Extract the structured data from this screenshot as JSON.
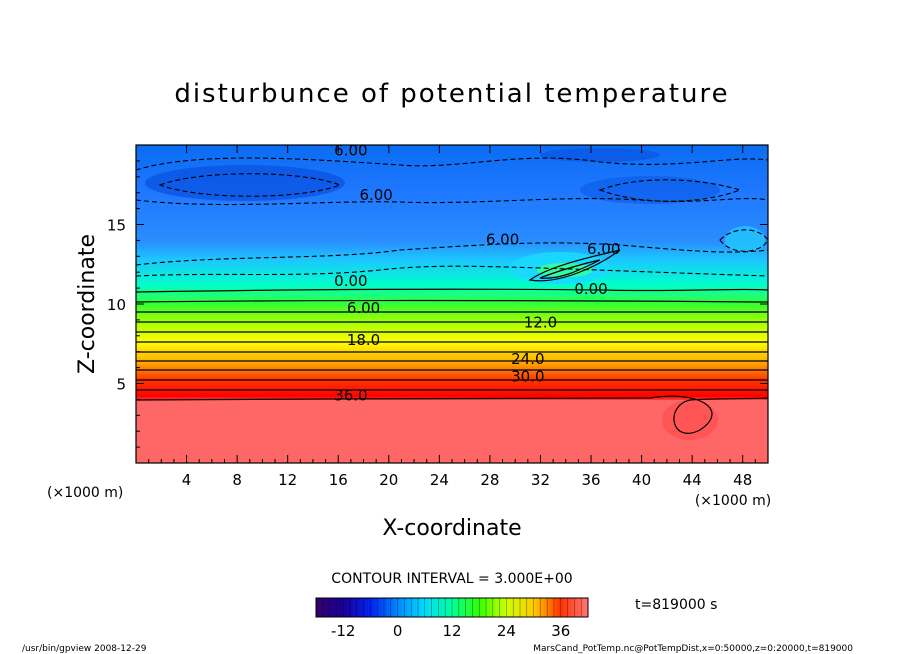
{
  "chart_data": {
    "type": "heatmap",
    "title": "disturbunce of potential temperature",
    "xlabel": "X-coordinate",
    "ylabel": "Z-coordinate",
    "x_unit": "(×1000 m)",
    "y_unit": "(×1000 m)",
    "xlim": [
      0,
      50
    ],
    "ylim": [
      0,
      20
    ],
    "x_ticks": [
      4,
      8,
      12,
      16,
      20,
      24,
      28,
      32,
      36,
      40,
      44,
      48
    ],
    "y_ticks": [
      5,
      10,
      15
    ],
    "contour_interval": "CONTOUR INTERVAL = 3.000E+00",
    "time_label": "t=819000 s",
    "colorbar": {
      "min": -18,
      "max": 42,
      "ticks": [
        -12,
        0,
        12,
        24,
        36
      ],
      "tick_labels": [
        "-12",
        "0",
        "12",
        "24",
        "36"
      ],
      "colors": [
        "#330066",
        "#3300cc",
        "#0033ff",
        "#0099ff",
        "#00ffff",
        "#00ff99",
        "#33ff00",
        "#ccff00",
        "#ffff00",
        "#ffcc00",
        "#ff6600",
        "#ff0000",
        "#ff6666"
      ]
    },
    "contour_labels": [
      {
        "text": "6.00",
        "x": 17,
        "z": 19.4
      },
      {
        "text": "6.00",
        "x": 19,
        "z": 16.6
      },
      {
        "text": "6.00",
        "x": 29,
        "z": 13.8
      },
      {
        "text": "6.00",
        "x": 37,
        "z": 13.2
      },
      {
        "text": "0.00",
        "x": 17,
        "z": 11.2
      },
      {
        "text": "0.00",
        "x": 36,
        "z": 10.7
      },
      {
        "text": "6.00",
        "x": 18,
        "z": 9.5
      },
      {
        "text": "12.0",
        "x": 32,
        "z": 8.6
      },
      {
        "text": "18.0",
        "x": 18,
        "z": 7.5
      },
      {
        "text": "24.0",
        "x": 31,
        "z": 6.3
      },
      {
        "text": "30.0",
        "x": 31,
        "z": 5.2
      },
      {
        "text": "36.0",
        "x": 17,
        "z": 4.0
      }
    ]
  },
  "footer": {
    "left": "/usr/bin/gpview   2008-12-29",
    "right": "MarsCand_PotTemp.nc@PotTempDist,x=0:50000,z=0:20000,t=819000"
  }
}
